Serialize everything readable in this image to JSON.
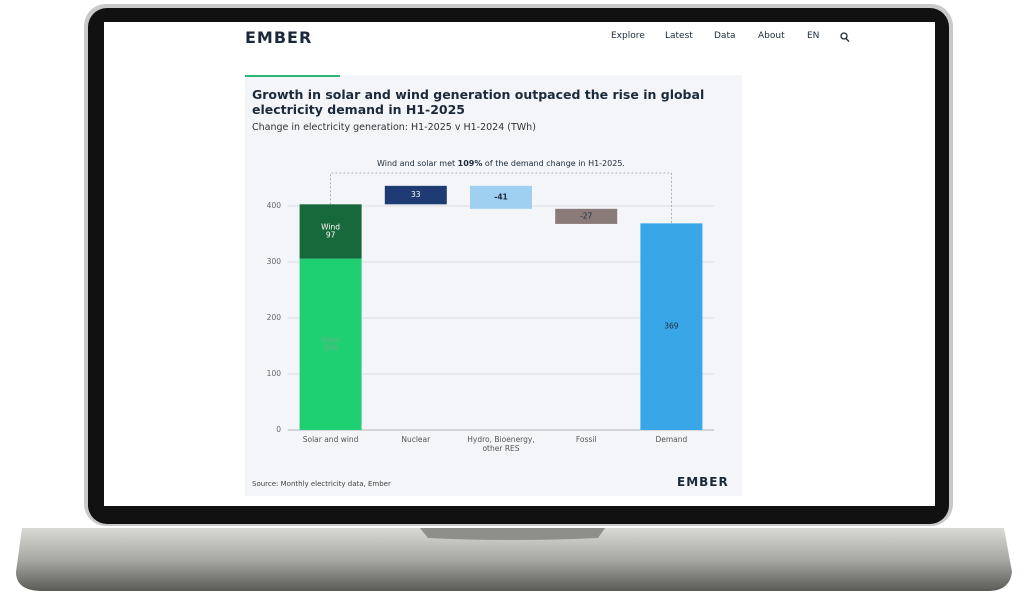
{
  "header": {
    "logo": "EMBER",
    "nav": [
      "Explore",
      "Latest",
      "Data",
      "About",
      "EN"
    ]
  },
  "chart_data": {
    "type": "waterfall",
    "title": "Growth in solar and wind generation outpaced the rise in global electricity demand in H1-2025",
    "subtitle": "Change in electricity generation: H1-2025 v H1-2024 (TWh)",
    "annotation": {
      "before": "Wind and solar met ",
      "bold": "109%",
      "after": " of the demand change in H1-2025."
    },
    "categories": [
      "Solar and wind",
      "Nuclear",
      "Hydro, Bioenergy, other RES",
      "Fossil",
      "Demand"
    ],
    "stack": [
      {
        "name": "Solar",
        "value": 306,
        "color": "#1fd073"
      },
      {
        "name": "Wind",
        "value": 97,
        "color": "#17683a"
      }
    ],
    "steps": [
      {
        "value": 33,
        "color": "#1f3b73"
      },
      {
        "value": -41,
        "color": "#9fd0f1"
      },
      {
        "value": -27,
        "color": "#8a7b79"
      }
    ],
    "total": {
      "value": 369,
      "color": "#39a7e7"
    },
    "ylim": [
      0,
      400
    ],
    "yticks": [
      0,
      100,
      200,
      300,
      400
    ],
    "grid": true,
    "source": "Source: Monthly electricity data, Ember",
    "logo": "EMBER"
  }
}
